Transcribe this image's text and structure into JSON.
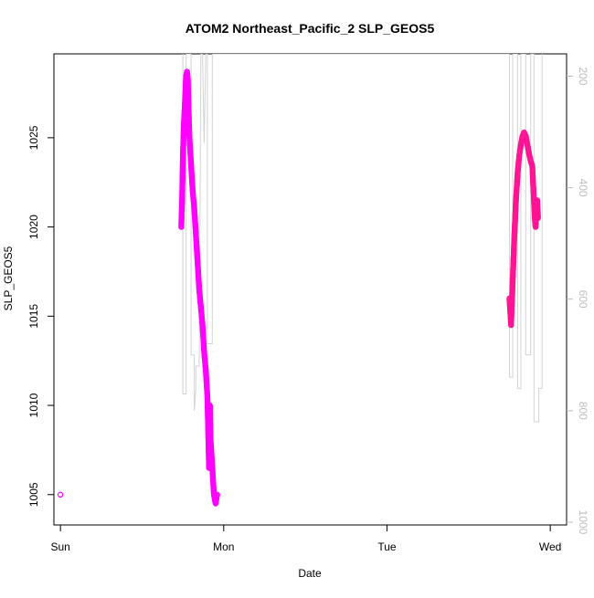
{
  "chart_data": {
    "type": "scatter",
    "title": "ATOM2 Northeast_Pacific_2 SLP_GEOS5",
    "xlabel": "Date",
    "ylabel": "SLP_GEOS5",
    "x_ticks": [
      "Sun",
      "Mon",
      "Tue",
      "Wed"
    ],
    "y_ticks": [
      1005,
      1010,
      1015,
      1020,
      1025
    ],
    "right_ticks": [
      200,
      400,
      600,
      800,
      1000
    ],
    "xlim_days": [
      -0.04,
      3.1
    ],
    "ylim": [
      1003.3,
      1029.7
    ],
    "right_axis_lim": [
      1005,
      160
    ],
    "grid": false,
    "colors": {
      "axis": "#000000",
      "right_axis": "#bebebe",
      "right_series": "#d3d3d3",
      "series_magenta": "#ff00ff",
      "series_pink": "#ff1493",
      "series_mix": "#ee00c8"
    },
    "series": [
      {
        "color": "#ff00ff",
        "points": [
          [
            0.0,
            1005.0
          ],
          [
            0.74,
            1020.0
          ],
          [
            0.745,
            1021.5
          ],
          [
            0.75,
            1024.0
          ],
          [
            0.755,
            1025.5
          ],
          [
            0.76,
            1026.5
          ],
          [
            0.765,
            1027.5
          ],
          [
            0.77,
            1028.5
          ],
          [
            0.775,
            1028.7
          ],
          [
            0.78,
            1028.3
          ],
          [
            0.785,
            1026.5
          ],
          [
            0.79,
            1025.0
          ],
          [
            0.8,
            1023.5
          ],
          [
            0.81,
            1022.0
          ],
          [
            0.82,
            1021.0
          ],
          [
            0.83,
            1019.5
          ],
          [
            0.84,
            1018.0
          ],
          [
            0.85,
            1016.5
          ],
          [
            0.86,
            1015.5
          ],
          [
            0.87,
            1014.5
          ],
          [
            0.88,
            1013.0
          ],
          [
            0.89,
            1012.0
          ],
          [
            0.9,
            1010.5
          ],
          [
            0.905,
            1008.5
          ],
          [
            0.91,
            1006.5
          ],
          [
            0.915,
            1010.0
          ],
          [
            0.92,
            1008.0
          ],
          [
            0.93,
            1006.5
          ],
          [
            0.94,
            1005.0
          ],
          [
            0.95,
            1004.5
          ],
          [
            0.96,
            1005.0
          ]
        ]
      },
      {
        "color": "#ff1493",
        "points": [
          [
            2.75,
            1016.0
          ],
          [
            2.76,
            1014.5
          ],
          [
            2.77,
            1017.0
          ],
          [
            2.78,
            1019.5
          ],
          [
            2.79,
            1021.5
          ],
          [
            2.8,
            1023.0
          ],
          [
            2.81,
            1024.0
          ],
          [
            2.82,
            1024.6
          ],
          [
            2.83,
            1025.1
          ],
          [
            2.84,
            1025.3
          ],
          [
            2.85,
            1025.1
          ],
          [
            2.86,
            1024.6
          ],
          [
            2.87,
            1024.1
          ],
          [
            2.88,
            1023.7
          ],
          [
            2.89,
            1023.4
          ],
          [
            2.9,
            1021.5
          ],
          [
            2.905,
            1020.5
          ],
          [
            2.91,
            1020.0
          ],
          [
            2.915,
            1020.8
          ],
          [
            2.92,
            1021.5
          ],
          [
            2.925,
            1020.5
          ]
        ]
      }
    ],
    "right_series": {
      "color": "#d3d3d3",
      "points": [
        [
          0.75,
          30
        ],
        [
          0.75,
          770
        ],
        [
          0.77,
          770
        ],
        [
          0.77,
          160
        ],
        [
          0.8,
          160
        ],
        [
          0.8,
          700
        ],
        [
          0.82,
          700
        ],
        [
          0.82,
          800
        ],
        [
          0.83,
          760
        ],
        [
          0.83,
          720
        ],
        [
          0.85,
          720
        ],
        [
          0.86,
          160
        ],
        [
          0.87,
          160
        ],
        [
          0.88,
          320
        ],
        [
          0.89,
          160
        ],
        [
          0.9,
          160
        ],
        [
          0.9,
          680
        ],
        [
          0.93,
          680
        ],
        [
          0.93,
          160
        ],
        [
          0.94,
          160
        ],
        [
          2.75,
          160
        ],
        [
          2.75,
          740
        ],
        [
          2.77,
          740
        ],
        [
          2.77,
          160
        ],
        [
          2.8,
          160
        ],
        [
          2.8,
          760
        ],
        [
          2.82,
          760
        ],
        [
          2.82,
          160
        ],
        [
          2.85,
          160
        ],
        [
          2.85,
          700
        ],
        [
          2.88,
          700
        ],
        [
          2.88,
          160
        ],
        [
          2.9,
          160
        ],
        [
          2.9,
          820
        ],
        [
          2.93,
          820
        ],
        [
          2.93,
          760
        ],
        [
          2.95,
          760
        ],
        [
          2.95,
          160
        ]
      ]
    }
  }
}
